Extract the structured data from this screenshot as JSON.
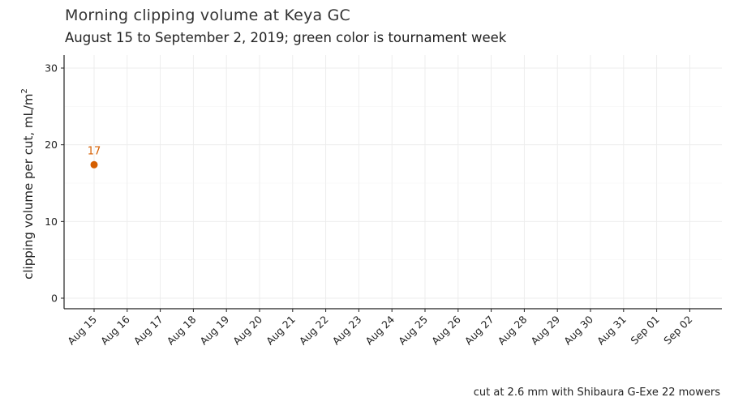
{
  "chart_data": {
    "type": "scatter",
    "title": "Morning clipping volume at Keya GC",
    "subtitle": "August 15 to September 2, 2019; green color is tournament week",
    "ylabel": "clipping volume per cut, mL/m",
    "ylabel_superscript": "2",
    "xlabel": "",
    "caption": "cut at 2.6 mm with Shibaura G-Exe 22 mowers",
    "x_categories": [
      "Aug 15",
      "Aug 16",
      "Aug 17",
      "Aug 18",
      "Aug 19",
      "Aug 20",
      "Aug 21",
      "Aug 22",
      "Aug 23",
      "Aug 24",
      "Aug 25",
      "Aug 26",
      "Aug 27",
      "Aug 28",
      "Aug 29",
      "Aug 30",
      "Aug 31",
      "Sep 01",
      "Sep 02"
    ],
    "ylim": [
      0,
      30
    ],
    "y_ticks": [
      0,
      10,
      20,
      30
    ],
    "grid": true,
    "points": [
      {
        "x": "Aug 15",
        "y": 17.4,
        "label": "17",
        "color": "#d55e00"
      }
    ]
  }
}
